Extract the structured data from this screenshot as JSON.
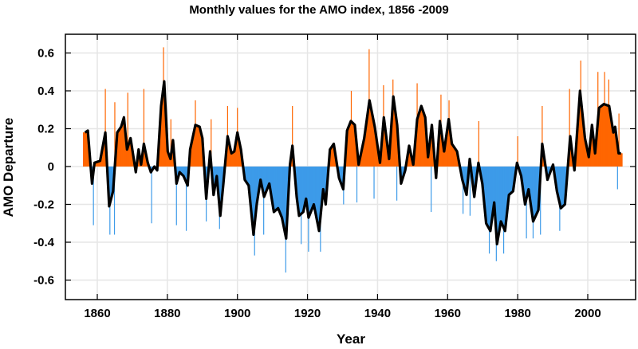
{
  "chart_data": {
    "type": "bar",
    "title": "Monthly values for the AMO index, 1856 -2009",
    "xlabel": "Year",
    "ylabel": "AMO Departure",
    "xlim": [
      1851,
      2014
    ],
    "ylim": [
      -0.7,
      0.7
    ],
    "xticks": [
      1860,
      1880,
      1900,
      1920,
      1940,
      1960,
      1980,
      2000
    ],
    "yticks": [
      -0.6,
      -0.4,
      -0.2,
      0,
      0.2,
      0.4,
      0.6
    ],
    "ytick_labels": [
      "-0.6",
      "-0.4",
      "-0.2",
      "0",
      "0.2",
      "0.4",
      "0.6"
    ],
    "grid": true,
    "colors": {
      "positive": "#ff6600",
      "negative": "#3d9be9",
      "smoothed": "#000000",
      "grid": "#e6e6e6"
    },
    "smoothed": [
      [
        1856.5,
        0.18
      ],
      [
        1857.3,
        0.19
      ],
      [
        1858.5,
        -0.09
      ],
      [
        1859.2,
        0.02
      ],
      [
        1860.8,
        0.03
      ],
      [
        1862.3,
        0.18
      ],
      [
        1863.4,
        -0.21
      ],
      [
        1864.5,
        -0.13
      ],
      [
        1865.7,
        0.18
      ],
      [
        1866.8,
        0.21
      ],
      [
        1867.6,
        0.26
      ],
      [
        1868.5,
        0.09
      ],
      [
        1869.5,
        0.15
      ],
      [
        1871.0,
        -0.03
      ],
      [
        1871.8,
        0.09
      ],
      [
        1872.5,
        0.01
      ],
      [
        1873.3,
        0.12
      ],
      [
        1874.4,
        0.02
      ],
      [
        1875.3,
        -0.03
      ],
      [
        1876.3,
        0.0
      ],
      [
        1877.1,
        -0.02
      ],
      [
        1878.2,
        0.32
      ],
      [
        1879.1,
        0.45
      ],
      [
        1880.1,
        0.08
      ],
      [
        1880.9,
        0.04
      ],
      [
        1881.6,
        0.14
      ],
      [
        1882.6,
        -0.09
      ],
      [
        1883.5,
        -0.03
      ],
      [
        1884.6,
        -0.05
      ],
      [
        1885.8,
        -0.1
      ],
      [
        1886.5,
        0.09
      ],
      [
        1888.0,
        0.22
      ],
      [
        1889.2,
        0.21
      ],
      [
        1890.0,
        0.15
      ],
      [
        1891.1,
        -0.17
      ],
      [
        1892.2,
        0.08
      ],
      [
        1893.2,
        -0.15
      ],
      [
        1894.1,
        -0.05
      ],
      [
        1895.1,
        -0.26
      ],
      [
        1896.0,
        -0.09
      ],
      [
        1897.2,
        0.16
      ],
      [
        1898.3,
        0.07
      ],
      [
        1899.1,
        0.08
      ],
      [
        1900.0,
        0.18
      ],
      [
        1901.0,
        0.09
      ],
      [
        1902.1,
        -0.07
      ],
      [
        1903.2,
        -0.1
      ],
      [
        1904.6,
        -0.36
      ],
      [
        1905.5,
        -0.2
      ],
      [
        1906.6,
        -0.07
      ],
      [
        1907.6,
        -0.16
      ],
      [
        1909.1,
        -0.09
      ],
      [
        1910.4,
        -0.24
      ],
      [
        1911.6,
        -0.22
      ],
      [
        1912.7,
        -0.27
      ],
      [
        1913.9,
        -0.38
      ],
      [
        1915.0,
        0.01
      ],
      [
        1915.7,
        0.11
      ],
      [
        1916.9,
        -0.16
      ],
      [
        1917.6,
        -0.26
      ],
      [
        1918.8,
        -0.24
      ],
      [
        1919.6,
        -0.17
      ],
      [
        1920.3,
        -0.27
      ],
      [
        1921.8,
        -0.2
      ],
      [
        1923.3,
        -0.34
      ],
      [
        1924.5,
        -0.12
      ],
      [
        1925.2,
        -0.2
      ],
      [
        1926.4,
        0.09
      ],
      [
        1927.5,
        0.12
      ],
      [
        1929.0,
        -0.06
      ],
      [
        1930.2,
        -0.12
      ],
      [
        1931.3,
        0.19
      ],
      [
        1932.4,
        0.24
      ],
      [
        1933.5,
        0.22
      ],
      [
        1934.6,
        0.01
      ],
      [
        1936.2,
        0.15
      ],
      [
        1937.7,
        0.35
      ],
      [
        1939.2,
        0.21
      ],
      [
        1940.7,
        0.02
      ],
      [
        1941.8,
        0.26
      ],
      [
        1943.3,
        0.04
      ],
      [
        1944.5,
        0.37
      ],
      [
        1945.6,
        0.22
      ],
      [
        1946.7,
        -0.09
      ],
      [
        1947.9,
        -0.02
      ],
      [
        1949.0,
        0.11
      ],
      [
        1950.2,
        0.01
      ],
      [
        1951.3,
        0.25
      ],
      [
        1952.5,
        0.32
      ],
      [
        1953.6,
        0.26
      ],
      [
        1954.4,
        0.05
      ],
      [
        1955.5,
        0.22
      ],
      [
        1956.7,
        -0.06
      ],
      [
        1957.8,
        0.24
      ],
      [
        1959.0,
        0.08
      ],
      [
        1960.3,
        0.25
      ],
      [
        1961.2,
        0.12
      ],
      [
        1962.7,
        0.08
      ],
      [
        1964.2,
        -0.07
      ],
      [
        1965.4,
        -0.15
      ],
      [
        1966.3,
        0.04
      ],
      [
        1967.6,
        -0.16
      ],
      [
        1968.8,
        0.02
      ],
      [
        1969.9,
        -0.09
      ],
      [
        1971.0,
        -0.3
      ],
      [
        1972.2,
        -0.34
      ],
      [
        1973.3,
        -0.19
      ],
      [
        1974.1,
        -0.41
      ],
      [
        1975.2,
        -0.29
      ],
      [
        1976.4,
        -0.34
      ],
      [
        1977.5,
        -0.15
      ],
      [
        1978.7,
        -0.13
      ],
      [
        1979.8,
        0.02
      ],
      [
        1981.0,
        -0.05
      ],
      [
        1982.1,
        -0.2
      ],
      [
        1983.1,
        -0.12
      ],
      [
        1984.4,
        -0.29
      ],
      [
        1985.9,
        -0.23
      ],
      [
        1987.0,
        0.12
      ],
      [
        1988.5,
        -0.07
      ],
      [
        1990.1,
        0.01
      ],
      [
        1991.2,
        -0.13
      ],
      [
        1992.3,
        -0.22
      ],
      [
        1993.5,
        -0.2
      ],
      [
        1995.0,
        0.16
      ],
      [
        1996.2,
        -0.02
      ],
      [
        1997.8,
        0.4
      ],
      [
        1999.2,
        0.15
      ],
      [
        2000.3,
        0.05
      ],
      [
        2001.2,
        0.22
      ],
      [
        2002.1,
        0.07
      ],
      [
        2003.2,
        0.31
      ],
      [
        2004.6,
        0.33
      ],
      [
        2006.1,
        0.32
      ],
      [
        2007.3,
        0.18
      ],
      [
        2007.8,
        0.21
      ],
      [
        2008.8,
        0.07
      ],
      [
        2009.5,
        0.07
      ]
    ],
    "monthly_extremes": [
      [
        1862.3,
        0.41
      ],
      [
        1865.0,
        0.34
      ],
      [
        1868.7,
        0.39
      ],
      [
        1873.3,
        0.41
      ],
      [
        1878.9,
        0.63
      ],
      [
        1881.0,
        0.25
      ],
      [
        1888.0,
        0.35
      ],
      [
        1892.5,
        0.25
      ],
      [
        1897.2,
        0.32
      ],
      [
        1900.0,
        0.31
      ],
      [
        1915.7,
        0.32
      ],
      [
        1932.5,
        0.4
      ],
      [
        1937.6,
        0.62
      ],
      [
        1941.7,
        0.43
      ],
      [
        1944.4,
        0.46
      ],
      [
        1951.3,
        0.44
      ],
      [
        1958.1,
        0.38
      ],
      [
        1960.4,
        0.35
      ],
      [
        1968.9,
        0.24
      ],
      [
        1980.0,
        0.16
      ],
      [
        1987.0,
        0.32
      ],
      [
        1994.8,
        0.41
      ],
      [
        1998.0,
        0.56
      ],
      [
        2002.9,
        0.5
      ],
      [
        2004.8,
        0.5
      ],
      [
        2006.0,
        0.46
      ],
      [
        2008.9,
        0.28
      ],
      [
        1858.9,
        -0.31
      ],
      [
        1863.6,
        -0.36
      ],
      [
        1864.9,
        -0.36
      ],
      [
        1875.5,
        -0.3
      ],
      [
        1882.6,
        -0.31
      ],
      [
        1885.4,
        -0.34
      ],
      [
        1891.1,
        -0.29
      ],
      [
        1894.9,
        -0.33
      ],
      [
        1904.9,
        -0.47
      ],
      [
        1907.5,
        -0.36
      ],
      [
        1913.8,
        -0.56
      ],
      [
        1918.2,
        -0.41
      ],
      [
        1920.3,
        -0.45
      ],
      [
        1923.7,
        -0.45
      ],
      [
        1930.3,
        -0.2
      ],
      [
        1934.1,
        -0.19
      ],
      [
        1939.0,
        -0.17
      ],
      [
        1945.5,
        -0.18
      ],
      [
        1955.3,
        -0.24
      ],
      [
        1964.4,
        -0.25
      ],
      [
        1966.4,
        -0.26
      ],
      [
        1971.9,
        -0.46
      ],
      [
        1973.9,
        -0.5
      ],
      [
        1976.0,
        -0.46
      ],
      [
        1982.5,
        -0.38
      ],
      [
        1984.4,
        -0.38
      ],
      [
        1986.5,
        -0.36
      ],
      [
        1992.0,
        -0.34
      ],
      [
        2008.5,
        -0.12
      ]
    ]
  }
}
